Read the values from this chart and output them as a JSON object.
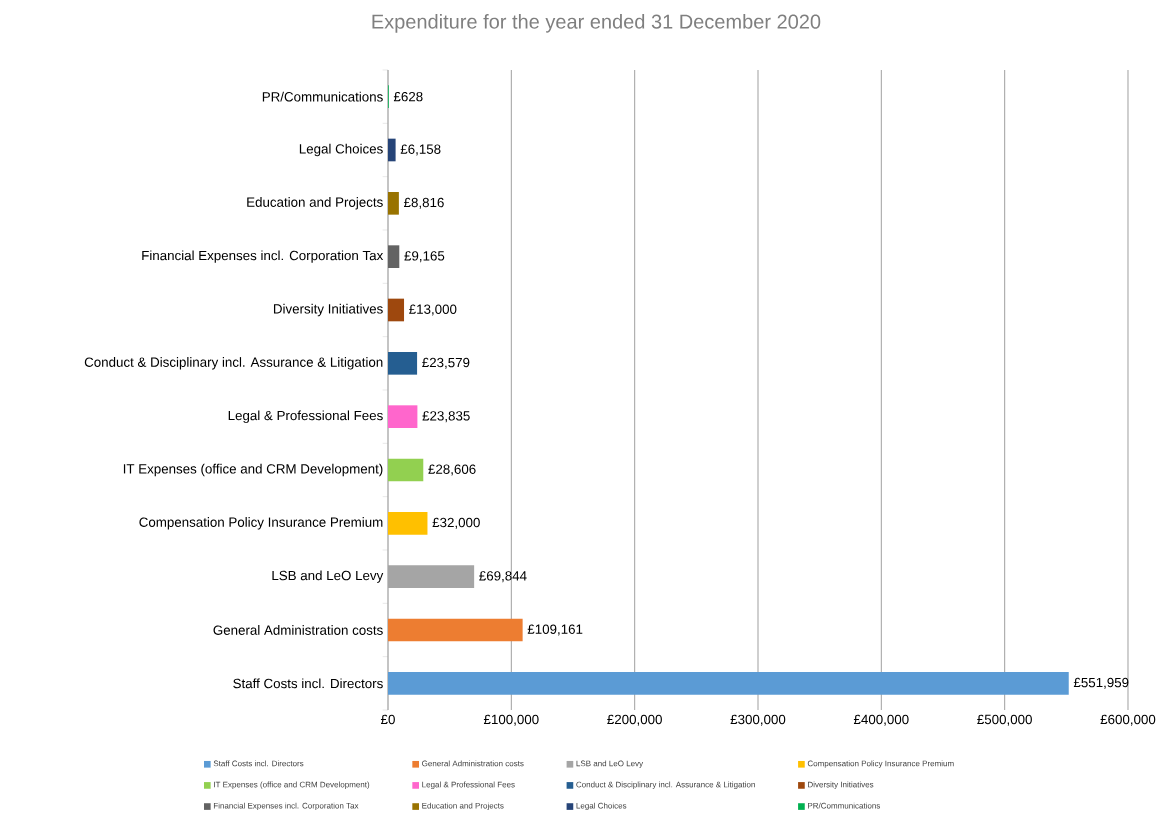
{
  "chart_data": {
    "type": "bar",
    "orientation": "horizontal",
    "title": "Expenditure for the year ended 31 December 2020",
    "categories": [
      "PR/Communications",
      "Legal Choices",
      "Education and Projects",
      "Financial Expenses incl. Corporation Tax",
      "Diversity Initiatives",
      "Conduct & Disciplinary incl. Assurance & Litigation",
      "Legal & Professional Fees",
      "IT Expenses (office and CRM Development)",
      "Compensation Policy Insurance Premium",
      "LSB and LeO Levy",
      "General Administration costs",
      "Staff Costs incl. Directors"
    ],
    "values": [
      628,
      6158,
      8816,
      9165,
      13000,
      23579,
      23835,
      28606,
      32000,
      69844,
      109161,
      551959
    ],
    "value_labels": [
      "£628",
      "£6,158",
      "£8,816",
      "£9,165",
      "£13,000",
      "£23,579",
      "£23,835",
      "£28,606",
      "£32,000",
      "£69,844",
      "£109,161",
      "£551,959"
    ],
    "colors": [
      "#00b050",
      "#264478",
      "#997300",
      "#636363",
      "#9e480e",
      "#255e91",
      "#ff66cc",
      "#92d050",
      "#ffc000",
      "#a5a5a5",
      "#ed7d31",
      "#5b9bd5"
    ],
    "xlim": [
      0,
      600000
    ],
    "xticks": [
      {
        "value": 0,
        "label": "£0"
      },
      {
        "value": 100000,
        "label": "£100,000"
      },
      {
        "value": 200000,
        "label": "£200,000"
      },
      {
        "value": 300000,
        "label": "£300,000"
      },
      {
        "value": 400000,
        "label": "£400,000"
      },
      {
        "value": 500000,
        "label": "£500,000"
      },
      {
        "value": 600000,
        "label": "£600,000"
      }
    ],
    "grid": "x"
  }
}
